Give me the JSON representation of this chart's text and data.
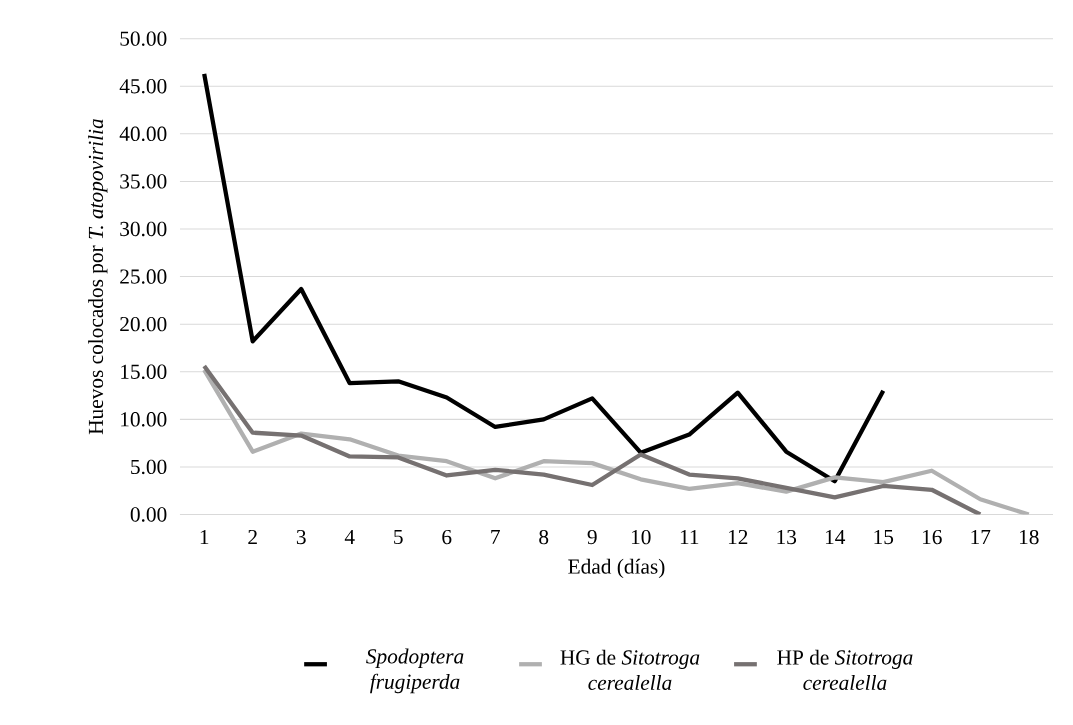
{
  "chart_data": {
    "type": "line",
    "xlabel": "Edad (días)",
    "ylabel": "Huevos colocados por *T. atopovirilia*",
    "categories": [
      "1",
      "2",
      "3",
      "4",
      "5",
      "6",
      "7",
      "8",
      "9",
      "10",
      "11",
      "12",
      "13",
      "14",
      "15",
      "16",
      "17",
      "18"
    ],
    "series": [
      {
        "name": "*Spodoptera frugiperda*",
        "color": "#000000",
        "values": [
          46.3,
          18.2,
          23.7,
          13.8,
          14.0,
          12.3,
          9.2,
          10.0,
          12.2,
          6.5,
          8.4,
          12.8,
          6.6,
          3.5,
          13.0,
          null,
          null,
          null
        ]
      },
      {
        "name": "HG de *Sitotroga cerealella*",
        "color": "#b0b0b0",
        "values": [
          15.2,
          6.6,
          8.5,
          7.9,
          6.2,
          5.6,
          3.8,
          5.6,
          5.4,
          3.7,
          2.7,
          3.3,
          2.4,
          3.9,
          3.4,
          4.6,
          1.6,
          0.0
        ]
      },
      {
        "name": "HP de *Sitotroga cerealella*",
        "color": "#767171",
        "values": [
          15.6,
          8.6,
          8.3,
          6.1,
          6.0,
          4.1,
          4.7,
          4.2,
          3.1,
          6.3,
          4.2,
          3.8,
          2.8,
          1.8,
          3.0,
          2.6,
          0.0,
          null
        ]
      }
    ],
    "ylim": [
      0,
      50
    ],
    "yticks": [
      {
        "value": 0,
        "label": "0.00"
      },
      {
        "value": 5,
        "label": "5.00"
      },
      {
        "value": 10,
        "label": "10.00"
      },
      {
        "value": 15,
        "label": "15.00"
      },
      {
        "value": 20,
        "label": "20.00"
      },
      {
        "value": 25,
        "label": "25.00"
      },
      {
        "value": 30,
        "label": "30.00"
      },
      {
        "value": 35,
        "label": "35.00"
      },
      {
        "value": 40,
        "label": "40.00"
      },
      {
        "value": 45,
        "label": "45.00"
      },
      {
        "value": 50,
        "label": "50.00"
      }
    ],
    "grid": "y",
    "legend": "bottom",
    "marker": "none",
    "line_style": "solid"
  }
}
